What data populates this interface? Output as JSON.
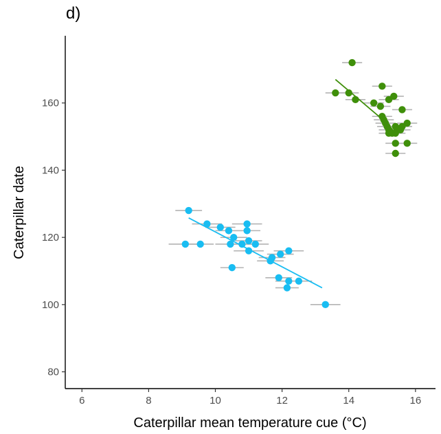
{
  "panel_label": "d)",
  "chart_data": {
    "type": "scatter",
    "title": "",
    "xlabel": "Caterpillar mean temperature cue (°C)",
    "ylabel": "Caterpillar date",
    "xlim": [
      5.5,
      16.6
    ],
    "ylim": [
      75,
      180
    ],
    "x_ticks": [
      6,
      8,
      10,
      12,
      14,
      16
    ],
    "y_ticks": [
      80,
      100,
      120,
      140,
      160
    ],
    "grid": false,
    "legend": "none",
    "errorbar_color": "#b3b3b3",
    "series": [
      {
        "color": "#19bdf2",
        "fit_line": {
          "x": [
            9.2,
            13.2
          ],
          "y": [
            125.8,
            105.0
          ]
        },
        "points": [
          {
            "x": 9.2,
            "y": 128,
            "xerr": 0.4
          },
          {
            "x": 9.1,
            "y": 118,
            "xerr": 0.5
          },
          {
            "x": 9.55,
            "y": 118,
            "xerr": 0.4
          },
          {
            "x": 9.75,
            "y": 124,
            "xerr": 0.45
          },
          {
            "x": 10.15,
            "y": 123,
            "xerr": 0.45
          },
          {
            "x": 10.4,
            "y": 122,
            "xerr": 0.4
          },
          {
            "x": 10.45,
            "y": 118,
            "xerr": 0.45
          },
          {
            "x": 10.55,
            "y": 120,
            "xerr": 0.4
          },
          {
            "x": 10.5,
            "y": 111,
            "xerr": 0.35
          },
          {
            "x": 10.8,
            "y": 118,
            "xerr": 0.4
          },
          {
            "x": 10.95,
            "y": 124,
            "xerr": 0.45
          },
          {
            "x": 10.95,
            "y": 122,
            "xerr": 0.4
          },
          {
            "x": 11.0,
            "y": 119,
            "xerr": 0.4
          },
          {
            "x": 11.0,
            "y": 116,
            "xerr": 0.45
          },
          {
            "x": 11.2,
            "y": 118,
            "xerr": 0.4
          },
          {
            "x": 11.65,
            "y": 113,
            "xerr": 0.4
          },
          {
            "x": 11.7,
            "y": 114,
            "xerr": 0.4
          },
          {
            "x": 11.95,
            "y": 115,
            "xerr": 0.4
          },
          {
            "x": 12.2,
            "y": 116,
            "xerr": 0.45
          },
          {
            "x": 11.9,
            "y": 108,
            "xerr": 0.4
          },
          {
            "x": 12.2,
            "y": 107,
            "xerr": 0.4
          },
          {
            "x": 12.15,
            "y": 105,
            "xerr": 0.35
          },
          {
            "x": 12.5,
            "y": 107,
            "xerr": 0.4
          },
          {
            "x": 13.3,
            "y": 100,
            "xerr": 0.45
          }
        ]
      },
      {
        "color": "#3f8f0a",
        "fit_line": {
          "x": [
            13.6,
            15.2,
            15.35,
            15.7
          ],
          "y": [
            167.0,
            153.5,
            151.5,
            153.0
          ]
        },
        "points": [
          {
            "x": 14.1,
            "y": 172,
            "xerr": 0.3
          },
          {
            "x": 13.6,
            "y": 163,
            "xerr": 0.3
          },
          {
            "x": 14.0,
            "y": 163,
            "xerr": 0.3
          },
          {
            "x": 14.2,
            "y": 161,
            "xerr": 0.3
          },
          {
            "x": 14.75,
            "y": 160,
            "xerr": 0.3
          },
          {
            "x": 15.0,
            "y": 165,
            "xerr": 0.3
          },
          {
            "x": 14.95,
            "y": 159,
            "xerr": 0.3
          },
          {
            "x": 15.2,
            "y": 161,
            "xerr": 0.3
          },
          {
            "x": 15.35,
            "y": 162,
            "xerr": 0.3
          },
          {
            "x": 15.6,
            "y": 158,
            "xerr": 0.3
          },
          {
            "x": 15.0,
            "y": 156,
            "xerr": 0.3
          },
          {
            "x": 15.05,
            "y": 155,
            "xerr": 0.3
          },
          {
            "x": 15.1,
            "y": 154,
            "xerr": 0.3
          },
          {
            "x": 15.15,
            "y": 153,
            "xerr": 0.3
          },
          {
            "x": 15.2,
            "y": 152,
            "xerr": 0.3
          },
          {
            "x": 15.2,
            "y": 151,
            "xerr": 0.3
          },
          {
            "x": 15.3,
            "y": 151,
            "xerr": 0.3
          },
          {
            "x": 15.4,
            "y": 151,
            "xerr": 0.3
          },
          {
            "x": 15.45,
            "y": 152,
            "xerr": 0.3
          },
          {
            "x": 15.4,
            "y": 153,
            "xerr": 0.3
          },
          {
            "x": 15.55,
            "y": 152,
            "xerr": 0.3
          },
          {
            "x": 15.6,
            "y": 153,
            "xerr": 0.3
          },
          {
            "x": 15.75,
            "y": 154,
            "xerr": 0.3
          },
          {
            "x": 15.4,
            "y": 148,
            "xerr": 0.3
          },
          {
            "x": 15.75,
            "y": 148,
            "xerr": 0.3
          },
          {
            "x": 15.4,
            "y": 145,
            "xerr": 0.3
          }
        ]
      }
    ]
  }
}
